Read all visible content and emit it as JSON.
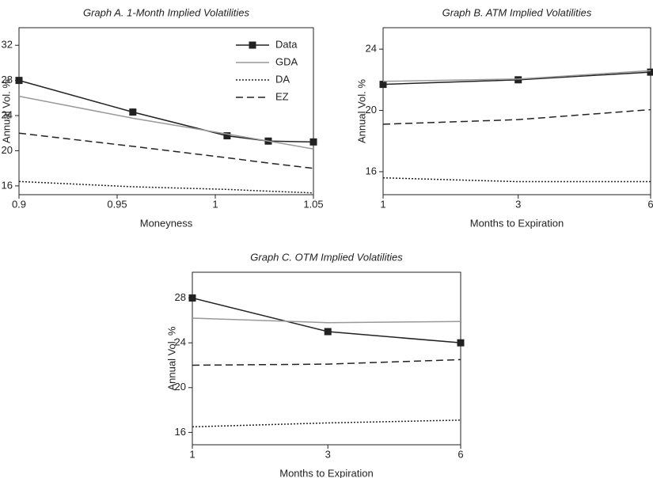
{
  "chart_data": [
    {
      "type": "line",
      "title": "Graph A. 1-Month Implied Volatilities",
      "xlabel": "Moneyness",
      "ylabel": "Annual Vol. %",
      "x": [
        0.9,
        0.958,
        1.006,
        1.027,
        1.05
      ],
      "xlim": [
        0.9,
        1.05
      ],
      "xticks": [
        0.9,
        0.95,
        1,
        1.05
      ],
      "xscale": "linear",
      "ylim": [
        15,
        34
      ],
      "yticks": [
        16,
        20,
        24,
        28,
        32
      ],
      "legend": "upper right",
      "series": [
        {
          "name": "Data",
          "color": "#222222",
          "dash": "solid",
          "marker": "square",
          "values": [
            28,
            24.4,
            21.7,
            21.1,
            21.0
          ]
        },
        {
          "name": "GDA",
          "color": "#999999",
          "dash": "solid",
          "values": [
            26.2,
            23.7,
            21.9,
            21.1,
            20.2
          ]
        },
        {
          "name": "DA",
          "color": "#222222",
          "dash": "dotted",
          "values": [
            16.5,
            15.9,
            15.6,
            15.4,
            15.2
          ]
        },
        {
          "name": "EZ",
          "color": "#222222",
          "dash": "dashed",
          "values": [
            22.0,
            20.5,
            19.2,
            18.6,
            18.0
          ]
        }
      ]
    },
    {
      "type": "line",
      "title": "Graph B. ATM Implied Volatilities",
      "xlabel": "Months to Expiration",
      "ylabel": "Annual Vol. %",
      "x": [
        1,
        3,
        6
      ],
      "xlim": [
        1,
        6
      ],
      "xticks": [
        1,
        3,
        6
      ],
      "xscale": "sqrt",
      "ylim": [
        14.5,
        25.4
      ],
      "yticks": [
        16,
        20,
        24
      ],
      "series": [
        {
          "color": "#222222",
          "dash": "solid",
          "marker": "square",
          "values": [
            21.7,
            22.0,
            22.5
          ]
        },
        {
          "color": "#999999",
          "dash": "solid",
          "values": [
            21.9,
            22.05,
            22.6
          ]
        },
        {
          "color": "#222222",
          "dash": "dotted",
          "values": [
            15.6,
            15.35,
            15.35
          ]
        },
        {
          "color": "#222222",
          "dash": "dashed",
          "values": [
            19.1,
            19.4,
            20.05
          ]
        }
      ]
    },
    {
      "type": "line",
      "title": "Graph C. OTM Implied Volatilities",
      "xlabel": "Months to Expiration",
      "ylabel": "Annual Vol. %",
      "x": [
        1,
        3,
        6
      ],
      "xlim": [
        1,
        6
      ],
      "xticks": [
        1,
        3,
        6
      ],
      "xscale": "sqrt",
      "ylim": [
        14.9,
        30.3
      ],
      "yticks": [
        16,
        20,
        24,
        28
      ],
      "series": [
        {
          "color": "#222222",
          "dash": "solid",
          "marker": "square",
          "values": [
            28,
            25,
            24
          ]
        },
        {
          "color": "#999999",
          "dash": "solid",
          "values": [
            26.2,
            25.8,
            25.9
          ]
        },
        {
          "color": "#222222",
          "dash": "dotted",
          "values": [
            16.5,
            16.85,
            17.1
          ]
        },
        {
          "color": "#222222",
          "dash": "dashed",
          "values": [
            22.0,
            22.1,
            22.5
          ]
        }
      ]
    }
  ]
}
